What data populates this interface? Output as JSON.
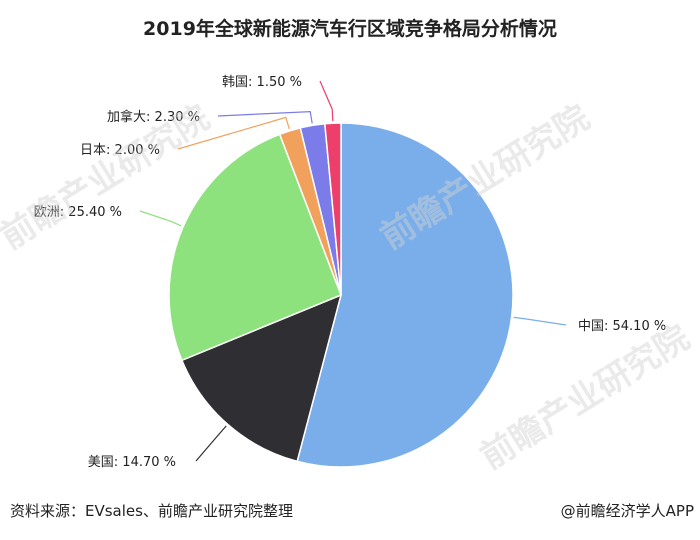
{
  "chart_data": {
    "type": "pie",
    "title": "2019年全球新能源汽车行区域竞争格局分析情况",
    "slices": [
      {
        "name": "中国",
        "value": 54.1,
        "label": "中国: 54.10 %",
        "color": "#79aeea"
      },
      {
        "name": "美国",
        "value": 14.7,
        "label": "美国: 14.70 %",
        "color": "#2f2f33"
      },
      {
        "name": "欧洲",
        "value": 25.4,
        "label": "欧洲: 25.40 %",
        "color": "#8ee27d"
      },
      {
        "name": "日本",
        "value": 2.0,
        "label": "日本: 2.00 %",
        "color": "#f2a15d"
      },
      {
        "name": "加拿大",
        "value": 2.3,
        "label": "加拿大: 2.30 %",
        "color": "#7b7bea"
      },
      {
        "name": "韩国",
        "value": 1.5,
        "label": "韩国: 1.50 %",
        "color": "#ee3f6c"
      }
    ],
    "start": "12 o'clock",
    "direction": "clockwise"
  },
  "footer": {
    "source": "资料来源：EVsales、前瞻产业研究院整理",
    "credit": "@前瞻经济学人APP"
  }
}
